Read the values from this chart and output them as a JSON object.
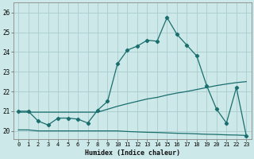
{
  "xlabel": "Humidex (Indice chaleur)",
  "bg_color": "#cce8e8",
  "grid_color": "#aacccc",
  "line_color": "#1a6e6e",
  "xlim": [
    -0.5,
    23.5
  ],
  "ylim": [
    19.6,
    26.5
  ],
  "yticks": [
    20,
    21,
    22,
    23,
    24,
    25,
    26
  ],
  "xticks": [
    0,
    1,
    2,
    3,
    4,
    5,
    6,
    7,
    8,
    9,
    10,
    11,
    12,
    13,
    14,
    15,
    16,
    17,
    18,
    19,
    20,
    21,
    22,
    23
  ],
  "line_bottom_x": [
    0,
    1,
    2,
    3,
    4,
    5,
    6,
    7,
    8,
    9,
    10,
    11,
    12,
    13,
    14,
    15,
    16,
    17,
    18,
    19,
    20,
    21,
    22,
    23
  ],
  "line_bottom_y": [
    20.05,
    20.05,
    20.0,
    20.0,
    20.0,
    20.0,
    20.0,
    20.0,
    20.0,
    20.0,
    20.0,
    19.97,
    19.95,
    19.93,
    19.92,
    19.9,
    19.88,
    19.87,
    19.85,
    19.83,
    19.82,
    19.8,
    19.79,
    19.77
  ],
  "line_mid_x": [
    0,
    1,
    2,
    3,
    4,
    5,
    6,
    7,
    8,
    9,
    10,
    11,
    12,
    13,
    14,
    15,
    16,
    17,
    18,
    19,
    20,
    21,
    22,
    23
  ],
  "line_mid_y": [
    20.95,
    20.95,
    20.95,
    20.95,
    20.95,
    20.95,
    20.95,
    20.95,
    20.95,
    21.1,
    21.25,
    21.38,
    21.5,
    21.62,
    21.7,
    21.82,
    21.92,
    22.0,
    22.1,
    22.2,
    22.3,
    22.38,
    22.45,
    22.5
  ],
  "line_main_x": [
    0,
    1,
    2,
    3,
    4,
    5,
    6,
    7,
    8,
    9,
    10,
    11,
    12,
    13,
    14,
    15,
    16,
    17,
    18,
    19,
    20,
    21,
    22,
    23
  ],
  "line_main_y": [
    21.0,
    21.0,
    20.5,
    20.3,
    20.65,
    20.65,
    20.6,
    20.4,
    21.05,
    21.5,
    23.4,
    24.1,
    24.3,
    24.6,
    24.55,
    25.75,
    24.9,
    24.35,
    23.8,
    22.3,
    21.1,
    20.4,
    22.2,
    19.75
  ]
}
